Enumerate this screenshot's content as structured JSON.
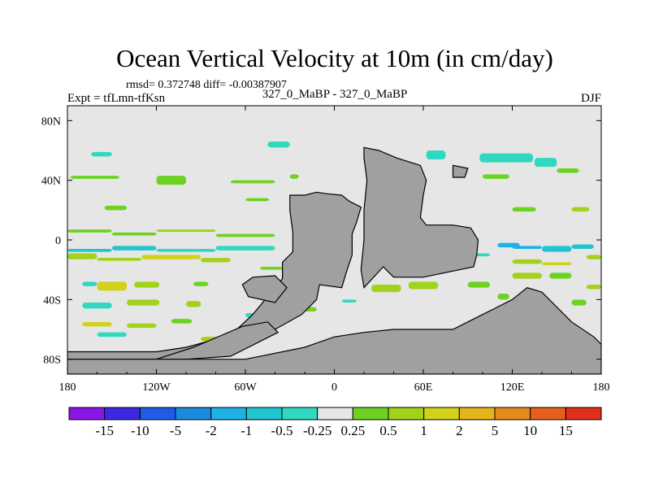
{
  "chart_data": {
    "type": "heatmap",
    "title": "Ocean Vertical Velocity at 10m (in cm/day)",
    "stats_text": "rmsd= 0.372748  diff= -0.00387907",
    "left_label": "Expt = tfLmn-tfKsn",
    "center_label": "327_0_MaBP - 327_0_MaBP",
    "right_label": "DJF",
    "x_ticks": [
      {
        "value": -180,
        "label": "180"
      },
      {
        "value": -120,
        "label": "120W"
      },
      {
        "value": -60,
        "label": "60W"
      },
      {
        "value": 0,
        "label": "0"
      },
      {
        "value": 60,
        "label": "60E"
      },
      {
        "value": 120,
        "label": "120E"
      },
      {
        "value": 180,
        "label": "180"
      }
    ],
    "y_ticks": [
      {
        "value": 80,
        "label": "80N"
      },
      {
        "value": 40,
        "label": "40N"
      },
      {
        "value": 0,
        "label": "0"
      },
      {
        "value": -40,
        "label": "40S"
      },
      {
        "value": -80,
        "label": "80S"
      }
    ],
    "xlim": [
      -180,
      180
    ],
    "ylim": [
      -90,
      90
    ],
    "levels": [
      "-15",
      "-10",
      "-5",
      "-2",
      "-1",
      "-0.5",
      "-0.25",
      "0.25",
      "0.5",
      "1",
      "2",
      "5",
      "10",
      "15"
    ],
    "colors": [
      "#8a16e6",
      "#3c28e0",
      "#1f5ce6",
      "#1b8be0",
      "#1fb0e6",
      "#22c4cf",
      "#30d8c0",
      "#e6e6e6",
      "#6ed222",
      "#a2d21c",
      "#d2d21c",
      "#e6b41c",
      "#e68a1c",
      "#e6601c",
      "#e0301c"
    ],
    "land_color": "#a0a0a0",
    "ocean_neutral_color": "#e6e6e6",
    "land_polygons": [
      {
        "name": "continent-a",
        "points": [
          [
            -180,
            -75
          ],
          [
            -120,
            -75
          ],
          [
            -100,
            -72
          ],
          [
            -70,
            -64
          ],
          [
            -55,
            -50
          ],
          [
            -45,
            -38
          ],
          [
            -35,
            -26
          ],
          [
            -35,
            -15
          ],
          [
            -28,
            -8
          ],
          [
            -28,
            5
          ],
          [
            -30,
            20
          ],
          [
            -30,
            30
          ],
          [
            -20,
            30
          ],
          [
            -12,
            32
          ],
          [
            -5,
            31
          ],
          [
            5,
            30
          ],
          [
            10,
            26
          ],
          [
            18,
            22
          ],
          [
            15,
            12
          ],
          [
            12,
            4
          ],
          [
            12,
            -10
          ],
          [
            8,
            -22
          ],
          [
            5,
            -32
          ],
          [
            -10,
            -30
          ],
          [
            -12,
            -40
          ],
          [
            -22,
            -50
          ],
          [
            -40,
            -60
          ],
          [
            -60,
            -66
          ],
          [
            -80,
            -72
          ],
          [
            -95,
            -80
          ],
          [
            -180,
            -80
          ]
        ]
      },
      {
        "name": "continent-b",
        "points": [
          [
            -55,
            -25
          ],
          [
            -40,
            -24
          ],
          [
            -32,
            -32
          ],
          [
            -40,
            -42
          ],
          [
            -58,
            -38
          ],
          [
            -62,
            -30
          ]
        ]
      },
      {
        "name": "continent-c",
        "points": [
          [
            -62,
            -58
          ],
          [
            -45,
            -55
          ],
          [
            -38,
            -62
          ],
          [
            -70,
            -78
          ],
          [
            -100,
            -80
          ],
          [
            -120,
            -80
          ],
          [
            -95,
            -72
          ]
        ]
      },
      {
        "name": "continent-d",
        "points": [
          [
            20,
            62
          ],
          [
            30,
            60
          ],
          [
            42,
            55
          ],
          [
            58,
            50
          ],
          [
            62,
            40
          ],
          [
            60,
            30
          ],
          [
            58,
            15
          ],
          [
            62,
            10
          ],
          [
            80,
            10
          ],
          [
            92,
            8
          ],
          [
            97,
            0
          ],
          [
            96,
            -10
          ],
          [
            94,
            -18
          ],
          [
            60,
            -25
          ],
          [
            40,
            -25
          ],
          [
            33,
            -18
          ],
          [
            20,
            -32
          ],
          [
            18,
            -20
          ],
          [
            20,
            0
          ],
          [
            20,
            20
          ],
          [
            22,
            40
          ],
          [
            20,
            55
          ]
        ]
      },
      {
        "name": "continent-e",
        "points": [
          [
            -180,
            -90
          ],
          [
            180,
            -90
          ],
          [
            180,
            -70
          ],
          [
            175,
            -65
          ],
          [
            160,
            -55
          ],
          [
            150,
            -45
          ],
          [
            140,
            -35
          ],
          [
            130,
            -32
          ],
          [
            120,
            -40
          ],
          [
            110,
            -45
          ],
          [
            100,
            -50
          ],
          [
            90,
            -55
          ],
          [
            80,
            -60
          ],
          [
            60,
            -60
          ],
          [
            40,
            -60
          ],
          [
            20,
            -62
          ],
          [
            0,
            -65
          ],
          [
            -20,
            -72
          ],
          [
            -60,
            -80
          ],
          [
            -100,
            -80
          ],
          [
            -180,
            -80
          ]
        ]
      },
      {
        "name": "continent-f",
        "points": [
          [
            80,
            50
          ],
          [
            90,
            48
          ],
          [
            88,
            42
          ],
          [
            80,
            42
          ]
        ]
      }
    ],
    "cells": [
      [
        -150,
        -160,
        -164,
        56,
        59,
        6
      ],
      [
        -120,
        -104,
        -86,
        60,
        64,
        7
      ],
      [
        -90,
        -84,
        -70,
        56,
        63,
        7
      ],
      [
        -45,
        -40,
        -30,
        62,
        66,
        6
      ],
      [
        62,
        65,
        75,
        54,
        60,
        6
      ],
      [
        98,
        118,
        134,
        52,
        58,
        6
      ],
      [
        150,
        140,
        135,
        49,
        55,
        6
      ],
      [
        -178,
        -160,
        -145,
        41,
        43,
        8
      ],
      [
        -120,
        -112,
        -100,
        37,
        43,
        8
      ],
      [
        -70,
        -55,
        -40,
        38,
        40,
        8
      ],
      [
        -30,
        -28,
        -24,
        41,
        44,
        8
      ],
      [
        100,
        108,
        118,
        41,
        44,
        8
      ],
      [
        150,
        156,
        165,
        45,
        48,
        8
      ],
      [
        -155,
        -150,
        -140,
        20,
        23,
        8
      ],
      [
        -60,
        -52,
        -44,
        26,
        28,
        8
      ],
      [
        120,
        128,
        136,
        19,
        22,
        8
      ],
      [
        160,
        166,
        172,
        19,
        22,
        9
      ],
      [
        -180,
        -170,
        -150,
        5,
        7,
        8
      ],
      [
        -150,
        -140,
        -120,
        3,
        5,
        8
      ],
      [
        -120,
        -100,
        -80,
        6,
        7,
        9
      ],
      [
        -80,
        -70,
        -40,
        2,
        4,
        8
      ],
      [
        -180,
        -170,
        -150,
        -6,
        -8,
        5
      ],
      [
        -150,
        -140,
        -120,
        -4,
        -7,
        5
      ],
      [
        -120,
        -100,
        -80,
        -6,
        -8,
        6
      ],
      [
        -80,
        -60,
        -40,
        -4,
        -7,
        6
      ],
      [
        -180,
        -176,
        -160,
        -9,
        -13,
        9
      ],
      [
        -160,
        -150,
        -130,
        -12,
        -14,
        9
      ],
      [
        -130,
        -110,
        -90,
        -10,
        -13,
        10
      ],
      [
        -90,
        -85,
        -70,
        -12,
        -15,
        9
      ],
      [
        -50,
        -45,
        -35,
        -18,
        -20,
        8
      ],
      [
        40,
        42,
        48,
        -6,
        -8,
        5
      ],
      [
        60,
        65,
        75,
        -7,
        -9,
        5
      ],
      [
        80,
        90,
        105,
        -9,
        -11,
        6
      ],
      [
        110,
        112,
        125,
        -2,
        -5,
        4
      ],
      [
        120,
        128,
        140,
        -4,
        -6,
        4
      ],
      [
        140,
        150,
        160,
        -4,
        -8,
        5
      ],
      [
        160,
        170,
        175,
        -3,
        -6,
        5
      ],
      [
        120,
        125,
        140,
        -13,
        -16,
        9
      ],
      [
        140,
        148,
        160,
        -15,
        -17,
        10
      ],
      [
        170,
        174,
        180,
        -10,
        -13,
        9
      ],
      [
        -170,
        -166,
        -160,
        -28,
        -31,
        6
      ],
      [
        -160,
        -150,
        -140,
        -28,
        -34,
        10
      ],
      [
        -135,
        -125,
        -118,
        -28,
        -32,
        9
      ],
      [
        -95,
        -90,
        -85,
        -28,
        -31,
        8
      ],
      [
        -170,
        -164,
        -150,
        -42,
        -46,
        6
      ],
      [
        -140,
        -130,
        -118,
        -40,
        -44,
        9
      ],
      [
        -100,
        -96,
        -90,
        -41,
        -45,
        9
      ],
      [
        -170,
        -160,
        -150,
        -55,
        -58,
        10
      ],
      [
        -140,
        -132,
        -120,
        -56,
        -59,
        9
      ],
      [
        -110,
        -104,
        -96,
        -53,
        -56,
        8
      ],
      [
        -160,
        -150,
        -140,
        -62,
        -65,
        6
      ],
      [
        -40,
        -32,
        -26,
        -44,
        -48,
        9
      ],
      [
        25,
        30,
        45,
        -30,
        -35,
        9
      ],
      [
        50,
        55,
        70,
        -28,
        -33,
        9
      ],
      [
        90,
        95,
        105,
        -28,
        -32,
        8
      ],
      [
        120,
        130,
        140,
        -22,
        -26,
        9
      ],
      [
        145,
        152,
        160,
        -22,
        -26,
        8
      ],
      [
        170,
        174,
        180,
        -30,
        -33,
        9
      ],
      [
        -30,
        -28,
        -24,
        -10,
        -14,
        8
      ],
      [
        110,
        116,
        118,
        -36,
        -40,
        8
      ],
      [
        160,
        166,
        170,
        -40,
        -44,
        8
      ],
      [
        -60,
        -55,
        -50,
        -49,
        -52,
        6
      ],
      [
        -20,
        -15,
        -12,
        -45,
        -48,
        8
      ],
      [
        5,
        10,
        15,
        -40,
        -42,
        6
      ],
      [
        -90,
        -80,
        -70,
        -65,
        -68,
        9
      ]
    ]
  }
}
